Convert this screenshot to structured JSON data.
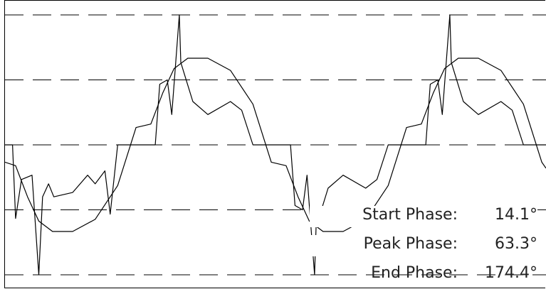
{
  "chart_data": {
    "type": "line",
    "title": "",
    "xlabel": "",
    "ylabel": "",
    "grid": "dashed horizontal",
    "xlim": [
      0,
      720
    ],
    "ylim": [
      -1.5,
      1.5
    ],
    "y_gridlines": [
      -1.5,
      -0.75,
      0.0,
      0.75,
      1.5
    ],
    "series": [
      {
        "role": "fundamental sinusoid (clipped at peaks)",
        "x": [
          0,
          14.1,
          30,
          45,
          63.3,
          90,
          120,
          150,
          174.4,
          194.1,
          210,
          225,
          243.3,
          270,
          300,
          330,
          354.4,
          374.1,
          390,
          405,
          423.3,
          450,
          480,
          510,
          534.4,
          554.1,
          570,
          585,
          603.3,
          630,
          660,
          690,
          714.4,
          720
        ],
        "y": [
          -0.2,
          -0.24,
          -0.6,
          -0.88,
          -1.0,
          -1.0,
          -0.86,
          -0.47,
          0.2,
          0.24,
          0.6,
          0.88,
          1.0,
          1.0,
          0.86,
          0.47,
          -0.2,
          -0.24,
          -0.6,
          -0.88,
          -1.0,
          -1.0,
          -0.86,
          -0.47,
          0.2,
          0.24,
          0.6,
          0.88,
          1.0,
          1.0,
          0.86,
          0.47,
          -0.2,
          -0.27
        ]
      },
      {
        "role": "pulse signal",
        "x": [
          0,
          10,
          14.1,
          22,
          36,
          45,
          50,
          58,
          65,
          90,
          110,
          120,
          133,
          140,
          150,
          174.4,
          194.1,
          200,
          206,
          216,
          222,
          232,
          234,
          250,
          270,
          300,
          315,
          330,
          354.4,
          374.1,
          380,
          386,
          396,
          402,
          412,
          414,
          430,
          450,
          480,
          495,
          510,
          534.4,
          554.1,
          560,
          566,
          576,
          582,
          592,
          594,
          610,
          630,
          660,
          675,
          690,
          714.4,
          720
        ],
        "y": [
          0.0,
          0.0,
          -0.85,
          -0.4,
          -0.35,
          -1.5,
          -0.6,
          -0.45,
          -0.6,
          -0.55,
          -0.35,
          -0.45,
          -0.3,
          -0.8,
          0.0,
          0.0,
          0.0,
          0.0,
          0.7,
          0.75,
          0.35,
          1.5,
          0.95,
          0.5,
          0.35,
          0.5,
          0.4,
          0.0,
          0.0,
          0.0,
          0.0,
          -0.7,
          -0.75,
          -0.35,
          -1.5,
          -0.95,
          -0.5,
          -0.35,
          -0.5,
          -0.4,
          0.0,
          0.0,
          0.0,
          0.0,
          0.7,
          0.75,
          0.35,
          1.5,
          0.95,
          0.5,
          0.35,
          0.5,
          0.4,
          0.0,
          0.0,
          0.0
        ]
      }
    ],
    "annotations": [
      {
        "label": "Start Phase:",
        "value": "14.1°"
      },
      {
        "label": "Peak Phase:",
        "value": "63.3°"
      },
      {
        "label": "End Phase:",
        "value": "174.4°"
      }
    ]
  },
  "readouts": {
    "start_label": "Start Phase:",
    "start_value": "14.1°",
    "peak_label": "Peak Phase:",
    "peak_value": "63.3°",
    "end_label": "End Phase:",
    "end_value": "174.4°"
  },
  "colors": {
    "trace": "#000000",
    "grid": "#000000",
    "background": "#ffffff"
  }
}
